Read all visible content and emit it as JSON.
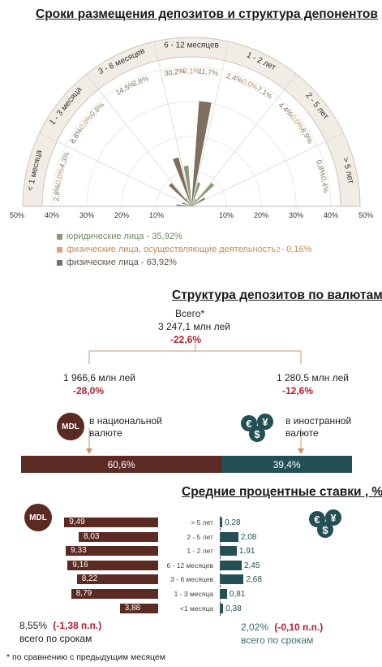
{
  "section1": {
    "title": "Сроки размещения депозитов и структура депонентов",
    "chart_data": {
      "type": "polar-bar",
      "categories": [
        "< 1 месяца",
        "1 - 3 месяца",
        "3 - 6 месяцев",
        "6 - 12 месяцев",
        "1 - 2 лет",
        "2 - 5 лет",
        "> 5 лет"
      ],
      "series": [
        {
          "name": "юридические лица - 35,92%",
          "color": "#8a9a78",
          "values": [
            4.3,
            0.8,
            2.8,
            11.7,
            7.1,
            8.9,
            0.4
          ]
        },
        {
          "name": "физические лица, осуществляющие деятельность - 0,16%",
          "color": "#d8a77c",
          "values": [
            0.0,
            0.0,
            0.0,
            0.1,
            0.0,
            0.0,
            0.0
          ]
        },
        {
          "name": "физические лица - 63,92%",
          "color": "#7d6e60",
          "values": [
            2.8,
            8.8,
            14.5,
            30.2,
            2.4,
            4.4,
            0.8
          ]
        }
      ],
      "value_labels": [
        [
          "4,3%",
          "0,0%",
          "2,8%"
        ],
        [
          "0,8%",
          "0,0%",
          "8,8%"
        ],
        [
          "2,8%",
          "14,5%"
        ],
        [
          "11,7%",
          "0,1%",
          "30,2%"
        ],
        [
          "7,1%",
          "0,0%",
          "2,4%"
        ],
        [
          "8,9%",
          "0,0%",
          "4,4%"
        ],
        [
          "0,4%",
          "0,8%"
        ]
      ],
      "radial_range": [
        0,
        50
      ],
      "axis_ticks": [
        "50%",
        "40%",
        "30%",
        "20%",
        "10%",
        "10%",
        "20%",
        "30%",
        "40%",
        "50%"
      ],
      "legend_placement": "bottom"
    },
    "legend": [
      {
        "text": "юридические лица - 35,92%",
        "color": "#8a9a78"
      },
      {
        "text": "физические лица, осуществляющие деятельность",
        "sup": "2",
        "suffix": " - 0,16%",
        "color": "#d8a77c"
      },
      {
        "text": "физические лица - 63,92%",
        "color": "#7d6e60"
      }
    ]
  },
  "section2": {
    "title": "Структура депозитов по валютам",
    "total_label": "Всего*",
    "total_value": "3 247,1 млн лей",
    "total_change": "-22,6%",
    "national": {
      "value": "1 966,6 млн лей",
      "change": "-28,0%",
      "label1": "в национальной",
      "label2": "валюте",
      "share": "60,6%",
      "share_value": 60.6,
      "badge": "MDL",
      "color": "#5b2a23"
    },
    "foreign": {
      "value": "1 280,5 млн лей",
      "change": "-12,6%",
      "label1": "в иностранной",
      "label2": "валюте",
      "share": "39,4%",
      "share_value": 39.4,
      "color": "#234f55"
    }
  },
  "section3": {
    "title": "Средние процентные ставки , %",
    "badge": "MDL",
    "chart_data": {
      "type": "bar",
      "categories": [
        "> 5 лет",
        "2 - 5 лет",
        "1 - 2 лет",
        "6 - 12 месяцев",
        "3 - 6 месяцев",
        "1 - 3 месяца",
        "<1 месяца"
      ],
      "series": [
        {
          "name": "MDL",
          "values": [
            9.49,
            8.03,
            9.33,
            9.16,
            8.22,
            8.79,
            3.88
          ],
          "labels": [
            "9,49",
            "8,03",
            "9,33",
            "9,16",
            "8,22",
            "8,79",
            "3,88"
          ],
          "color": "#5b2a23"
        },
        {
          "name": "FX",
          "values": [
            0.28,
            2.08,
            1.91,
            2.45,
            2.68,
            0.81,
            0.38
          ],
          "labels": [
            "0,28",
            "2,08",
            "1,91",
            "2,45",
            "2,68",
            "0,81",
            "0,38"
          ],
          "color": "#234f55"
        }
      ]
    },
    "mdl_total": "8,55%",
    "mdl_change": "(-1,38 п.п.)",
    "mdl_caption": "всего по срокам",
    "fx_total": "2,02%",
    "fx_change": "(-0,10 п.п.)",
    "fx_caption": "всего по срокам"
  },
  "footnote": "* по сравнению с предыдущим месяцем"
}
